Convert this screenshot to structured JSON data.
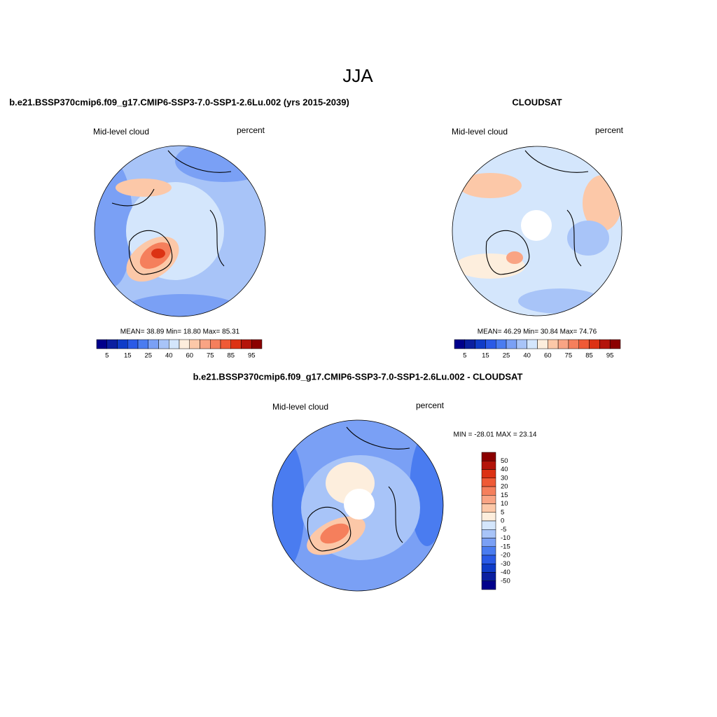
{
  "title": "JJA",
  "panels": [
    {
      "title": "b.e21.BSSP370cmip6.f09_g17.CMIP6-SSP3-7.0-SSP1-2.6Lu.002 (yrs 2015-2039)",
      "left_label": "Mid-level cloud",
      "right_label": "percent",
      "stats": "MEAN=  38.89  Min=  18.80  Max=  85.31",
      "colorbar": {
        "colors": [
          "#00008b",
          "#0a1fa0",
          "#0f3cc8",
          "#2a5ae6",
          "#4a7cf0",
          "#7aa0f5",
          "#a8c4f8",
          "#d4e6fc",
          "#fdeedd",
          "#fcc8a8",
          "#f9a484",
          "#f57f5c",
          "#ef5a36",
          "#dc3214",
          "#b4140a",
          "#8b0000"
        ],
        "labels": [
          5,
          15,
          25,
          40,
          60,
          75,
          85,
          95
        ]
      }
    },
    {
      "title": "CLOUDSAT",
      "left_label": "Mid-level cloud",
      "right_label": "percent",
      "stats": "MEAN=  46.29  Min=  30.84  Max=  74.76",
      "colorbar": {
        "colors": [
          "#00008b",
          "#0a1fa0",
          "#0f3cc8",
          "#2a5ae6",
          "#4a7cf0",
          "#7aa0f5",
          "#a8c4f8",
          "#d4e6fc",
          "#fdeedd",
          "#fcc8a8",
          "#f9a484",
          "#f57f5c",
          "#ef5a36",
          "#dc3214",
          "#b4140a",
          "#8b0000"
        ],
        "labels": [
          5,
          15,
          25,
          40,
          60,
          75,
          85,
          95
        ]
      }
    },
    {
      "title": "b.e21.BSSP370cmip6.f09_g17.CMIP6-SSP3-7.0-SSP1-2.6Lu.002 - CLOUDSAT",
      "left_label": "Mid-level cloud",
      "right_label": "percent",
      "stats": "MIN = -28.01 MAX =  23.14",
      "colorbar": {
        "colors": [
          "#8b0000",
          "#b4140a",
          "#dc3214",
          "#ef5a36",
          "#f57f5c",
          "#f9a484",
          "#fcc8a8",
          "#fdeedd",
          "#d4e6fc",
          "#a8c4f8",
          "#7aa0f5",
          "#4a7cf0",
          "#2a5ae6",
          "#0f3cc8",
          "#0a1fa0",
          "#00008b"
        ],
        "labels": [
          50,
          40,
          30,
          20,
          15,
          10,
          5,
          0,
          -5,
          -10,
          -15,
          -20,
          -30,
          -40,
          -50
        ]
      }
    }
  ]
}
